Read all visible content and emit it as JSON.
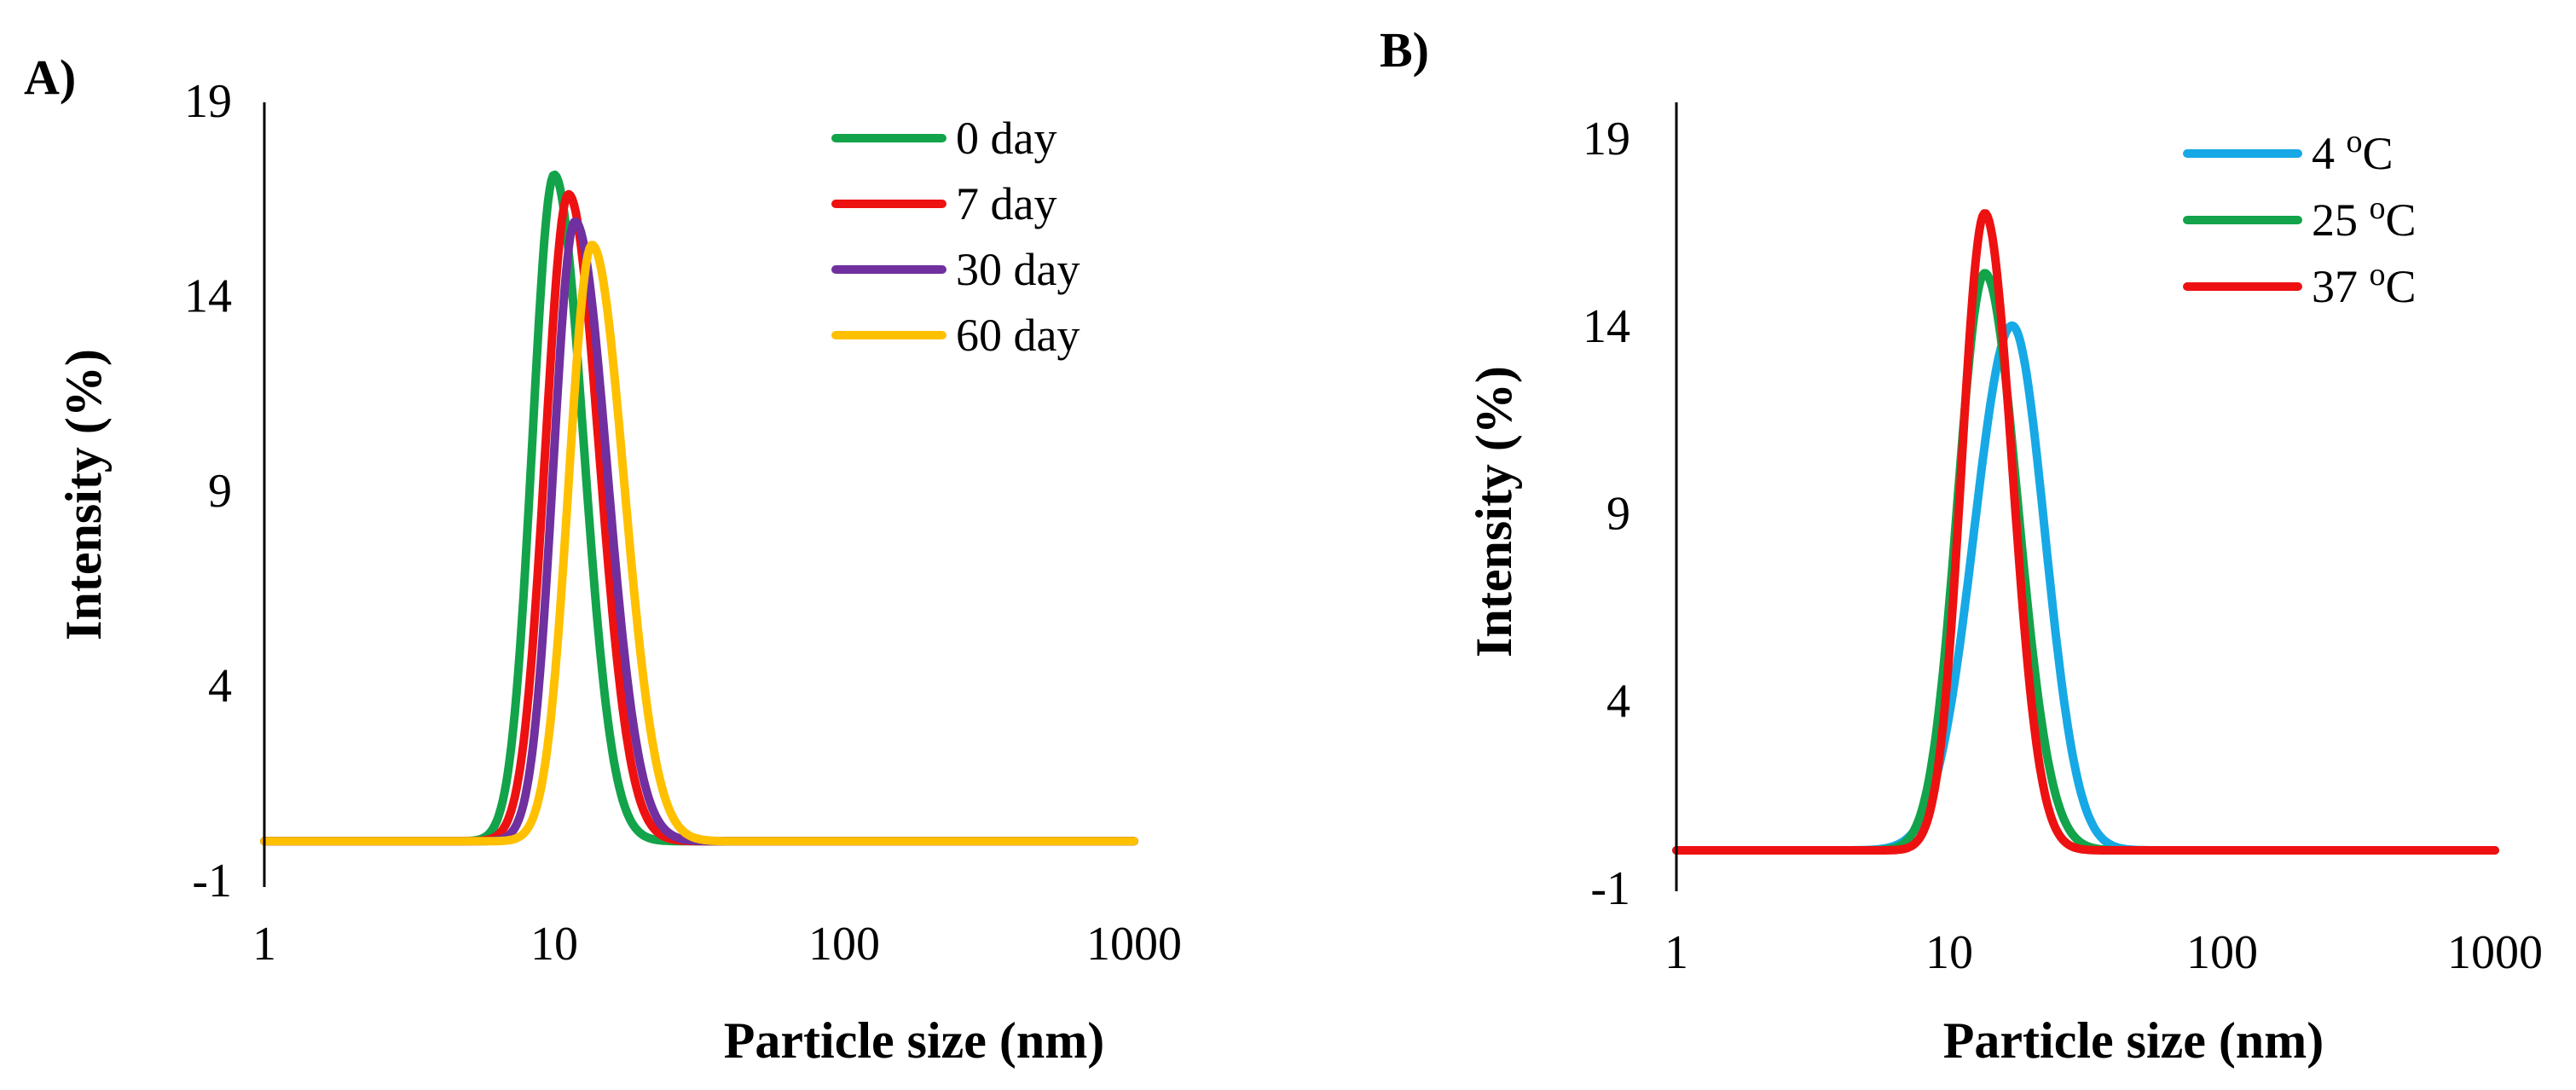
{
  "chart_data": [
    {
      "type": "line",
      "panel_label": "A)",
      "xlabel": "Particle  size (nm)",
      "ylabel": "Intensity (%)",
      "xscale": "log",
      "xlim": [
        1,
        1000
      ],
      "ylim": [
        -1,
        19
      ],
      "xticks": [
        1,
        10,
        100,
        1000
      ],
      "xtick_labels": [
        "1",
        "10",
        "100",
        "1000"
      ],
      "yticks": [
        -1,
        4,
        9,
        14,
        19
      ],
      "ytick_labels": [
        "-1",
        "4",
        "9",
        "14",
        "19"
      ],
      "legend_position": "top-right",
      "series": [
        {
          "name": "0 day",
          "color": "#13a34a",
          "center": 10.0,
          "peak": 17.1,
          "width_down": 0.075,
          "width_up": 0.1,
          "baseline": 0
        },
        {
          "name": "7 day",
          "color": "#ee1111",
          "center": 11.2,
          "peak": 16.6,
          "width_down": 0.08,
          "width_up": 0.105,
          "baseline": 0
        },
        {
          "name": "30 day",
          "color": "#7030a0",
          "center": 11.8,
          "peak": 15.9,
          "width_down": 0.075,
          "width_up": 0.11,
          "baseline": 0
        },
        {
          "name": "60 day",
          "color": "#ffc000",
          "center": 13.5,
          "peak": 15.3,
          "width_down": 0.08,
          "width_up": 0.11,
          "baseline": 0
        }
      ]
    },
    {
      "type": "line",
      "panel_label": "B)",
      "xlabel": "Particle  size (nm)",
      "ylabel": "Intensity (%)",
      "xscale": "log",
      "xlim": [
        1,
        1000
      ],
      "ylim": [
        -1,
        19
      ],
      "xticks": [
        1,
        10,
        100,
        1000
      ],
      "xtick_labels": [
        "1",
        "10",
        "100",
        "1000"
      ],
      "yticks": [
        -1,
        4,
        9,
        14,
        19
      ],
      "ytick_labels": [
        "-1",
        "4",
        "9",
        "14",
        "19"
      ],
      "legend_position": "top-right",
      "series": [
        {
          "name": "4 °C",
          "label_main": "4 ",
          "label_sup": "o",
          "label_tail": "C",
          "color": "#17a9e6",
          "center": 17.0,
          "peak": 14.0,
          "width_down": 0.14,
          "width_up": 0.12,
          "baseline": 0
        },
        {
          "name": "25 °C",
          "label_main": "25 ",
          "label_sup": "o",
          "label_tail": "C",
          "color": "#13a34a",
          "center": 13.5,
          "peak": 15.4,
          "width_down": 0.1,
          "width_up": 0.12,
          "baseline": 0
        },
        {
          "name": "37 °C",
          "label_main": "37 ",
          "label_sup": "o",
          "label_tail": "C",
          "color": "#ee1111",
          "center": 13.5,
          "peak": 17.0,
          "width_down": 0.085,
          "width_up": 0.1,
          "baseline": 0
        }
      ]
    }
  ]
}
